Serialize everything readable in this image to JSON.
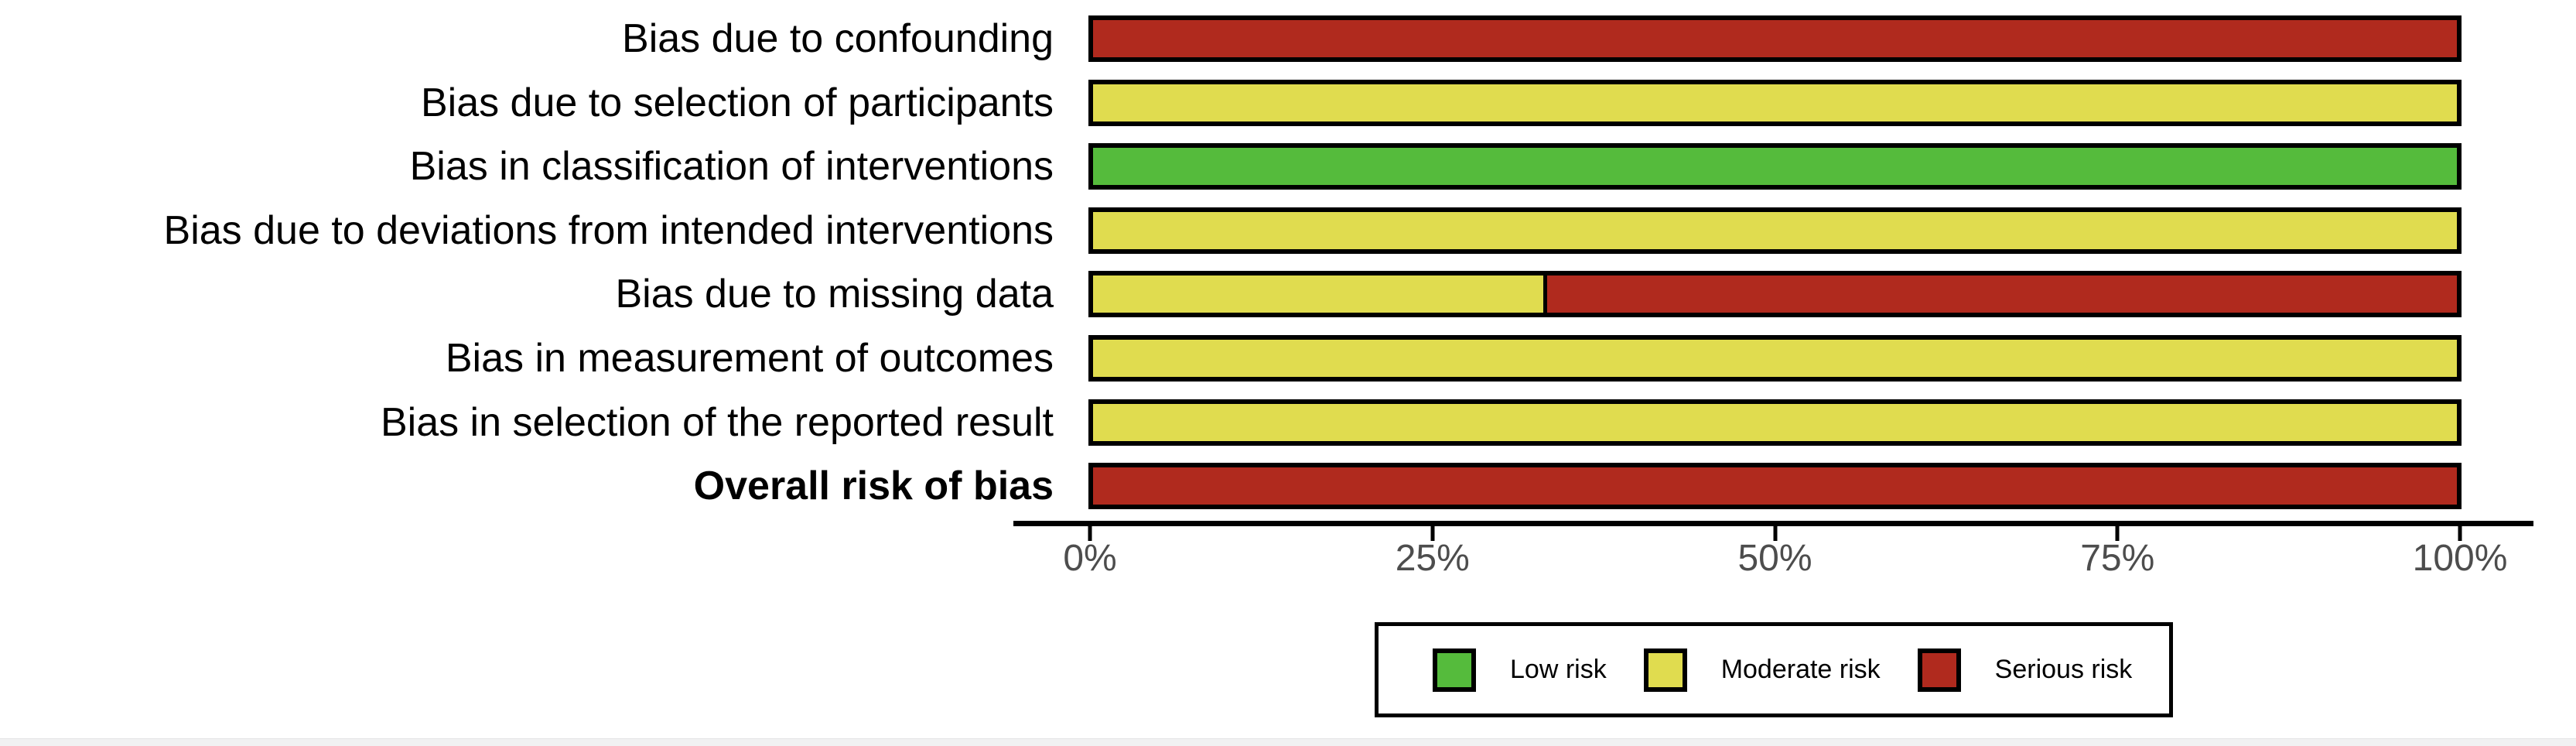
{
  "chart_data": {
    "type": "bar",
    "orientation": "horizontal",
    "stacked": true,
    "title": "",
    "xlabel": "",
    "ylabel": "",
    "xlim": [
      0,
      100
    ],
    "x_ticks": [
      "0%",
      "25%",
      "50%",
      "75%",
      "100%"
    ],
    "x_tick_values": [
      0,
      25,
      50,
      75,
      100
    ],
    "grid": false,
    "legend_position": "bottom",
    "categories": [
      "Bias due to confounding",
      "Bias due to selection of participants",
      "Bias in classification of interventions",
      "Bias due to deviations from intended interventions",
      "Bias due to missing data",
      "Bias in measurement of outcomes",
      "Bias in selection of the reported result",
      "Overall risk of bias"
    ],
    "bold_categories": [
      "Overall risk of bias"
    ],
    "series": [
      {
        "name": "Low risk",
        "color": "#55BB3C",
        "values": [
          0,
          0,
          100,
          0,
          0,
          0,
          0,
          0
        ]
      },
      {
        "name": "Moderate risk",
        "color": "#E0DC4F",
        "values": [
          0,
          100,
          0,
          100,
          33.3,
          100,
          100,
          0
        ]
      },
      {
        "name": "Serious risk",
        "color": "#B02A1E",
        "values": [
          100,
          0,
          0,
          0,
          66.7,
          0,
          0,
          100
        ]
      }
    ]
  },
  "legend": {
    "items": [
      {
        "label": "Low risk",
        "color": "#55BB3C",
        "key": "low"
      },
      {
        "label": "Moderate risk",
        "color": "#E0DC4F",
        "key": "moderate"
      },
      {
        "label": "Serious risk",
        "color": "#B02A1E",
        "key": "serious"
      }
    ]
  },
  "colors": {
    "low_risk": "#55BB3C",
    "moderate_risk": "#E0DC4F",
    "serious_risk": "#B02A1E",
    "bar_outline": "#000000",
    "axis_line": "#000000",
    "axis_tick_label": "#4d4d4d",
    "background": "#ffffff"
  }
}
